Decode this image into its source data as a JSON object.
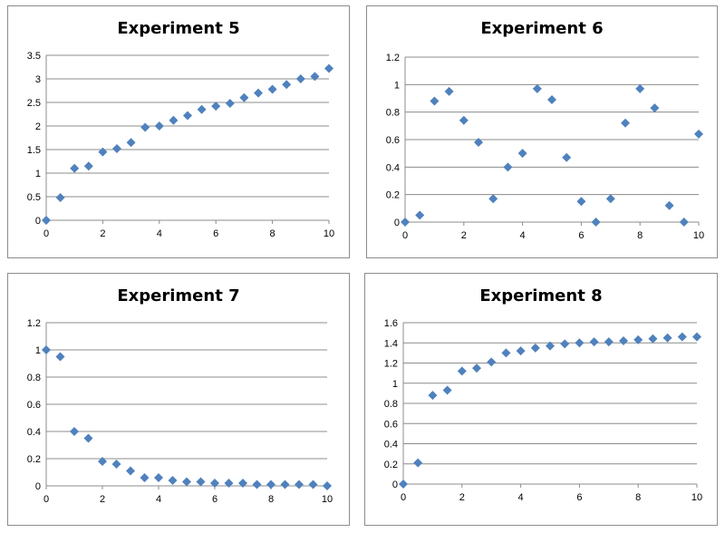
{
  "chart_data": [
    {
      "type": "scatter",
      "title": "Experiment 5",
      "xlim": [
        0,
        10
      ],
      "ylim": [
        0,
        3.5
      ],
      "xticks": [
        0,
        2,
        4,
        6,
        8,
        10
      ],
      "yticks": [
        0,
        0.5,
        1,
        1.5,
        2,
        2.5,
        3,
        3.5
      ],
      "grid": "horizontal",
      "marker_color": "#4F81BD",
      "x": [
        0,
        0.5,
        1,
        1.5,
        2,
        2.5,
        3,
        3.5,
        4,
        4.5,
        5,
        5.5,
        6,
        6.5,
        7,
        7.5,
        8,
        8.5,
        9,
        9.5,
        10
      ],
      "y": [
        0,
        0.48,
        1.1,
        1.15,
        1.45,
        1.52,
        1.65,
        1.97,
        2.0,
        2.12,
        2.22,
        2.35,
        2.42,
        2.48,
        2.6,
        2.7,
        2.78,
        2.88,
        3.0,
        3.05,
        3.22
      ]
    },
    {
      "type": "scatter",
      "title": "Experiment 6",
      "xlim": [
        0,
        10
      ],
      "ylim": [
        0,
        1.2
      ],
      "xticks": [
        0,
        2,
        4,
        6,
        8,
        10
      ],
      "yticks": [
        0,
        0.2,
        0.4,
        0.6,
        0.8,
        1,
        1.2
      ],
      "grid": "horizontal",
      "marker_color": "#4F81BD",
      "x": [
        0,
        0.5,
        1,
        1.5,
        2,
        2.5,
        3,
        3.5,
        4,
        4.5,
        5,
        5.5,
        6,
        6.5,
        7,
        7.5,
        8,
        8.5,
        9,
        9.5,
        10
      ],
      "y": [
        0,
        0.05,
        0.88,
        0.95,
        0.74,
        0.58,
        0.17,
        0.4,
        0.5,
        0.97,
        0.89,
        0.47,
        0.15,
        0.0,
        0.17,
        0.72,
        0.97,
        0.83,
        0.12,
        0.0,
        0.64
      ]
    },
    {
      "type": "scatter",
      "title": "Experiment 7",
      "xlim": [
        0,
        10
      ],
      "ylim": [
        0,
        1.2
      ],
      "xticks": [
        0,
        2,
        4,
        6,
        8,
        10
      ],
      "yticks": [
        0,
        0.2,
        0.4,
        0.6,
        0.8,
        1,
        1.2
      ],
      "grid": "horizontal",
      "marker_color": "#4F81BD",
      "x": [
        0,
        0.5,
        1,
        1.5,
        2,
        2.5,
        3,
        3.5,
        4,
        4.5,
        5,
        5.5,
        6,
        6.5,
        7,
        7.5,
        8,
        8.5,
        9,
        9.5,
        10
      ],
      "y": [
        1.0,
        0.95,
        0.4,
        0.35,
        0.18,
        0.16,
        0.11,
        0.06,
        0.06,
        0.04,
        0.03,
        0.03,
        0.02,
        0.02,
        0.02,
        0.01,
        0.01,
        0.01,
        0.01,
        0.01,
        0.0
      ]
    },
    {
      "type": "scatter",
      "title": "Experiment 8",
      "xlim": [
        0,
        10
      ],
      "ylim": [
        0,
        1.6
      ],
      "xticks": [
        0,
        2,
        4,
        6,
        8,
        10
      ],
      "yticks": [
        0,
        0.2,
        0.4,
        0.6,
        0.8,
        1,
        1.2,
        1.4,
        1.6
      ],
      "grid": "horizontal",
      "marker_color": "#4F81BD",
      "x": [
        0,
        0.5,
        1,
        1.5,
        2,
        2.5,
        3,
        3.5,
        4,
        4.5,
        5,
        5.5,
        6,
        6.5,
        7,
        7.5,
        8,
        8.5,
        9,
        9.5,
        10
      ],
      "y": [
        0,
        0.21,
        0.88,
        0.93,
        1.12,
        1.15,
        1.21,
        1.3,
        1.32,
        1.35,
        1.37,
        1.39,
        1.4,
        1.41,
        1.41,
        1.42,
        1.43,
        1.44,
        1.45,
        1.46,
        1.46
      ]
    }
  ]
}
